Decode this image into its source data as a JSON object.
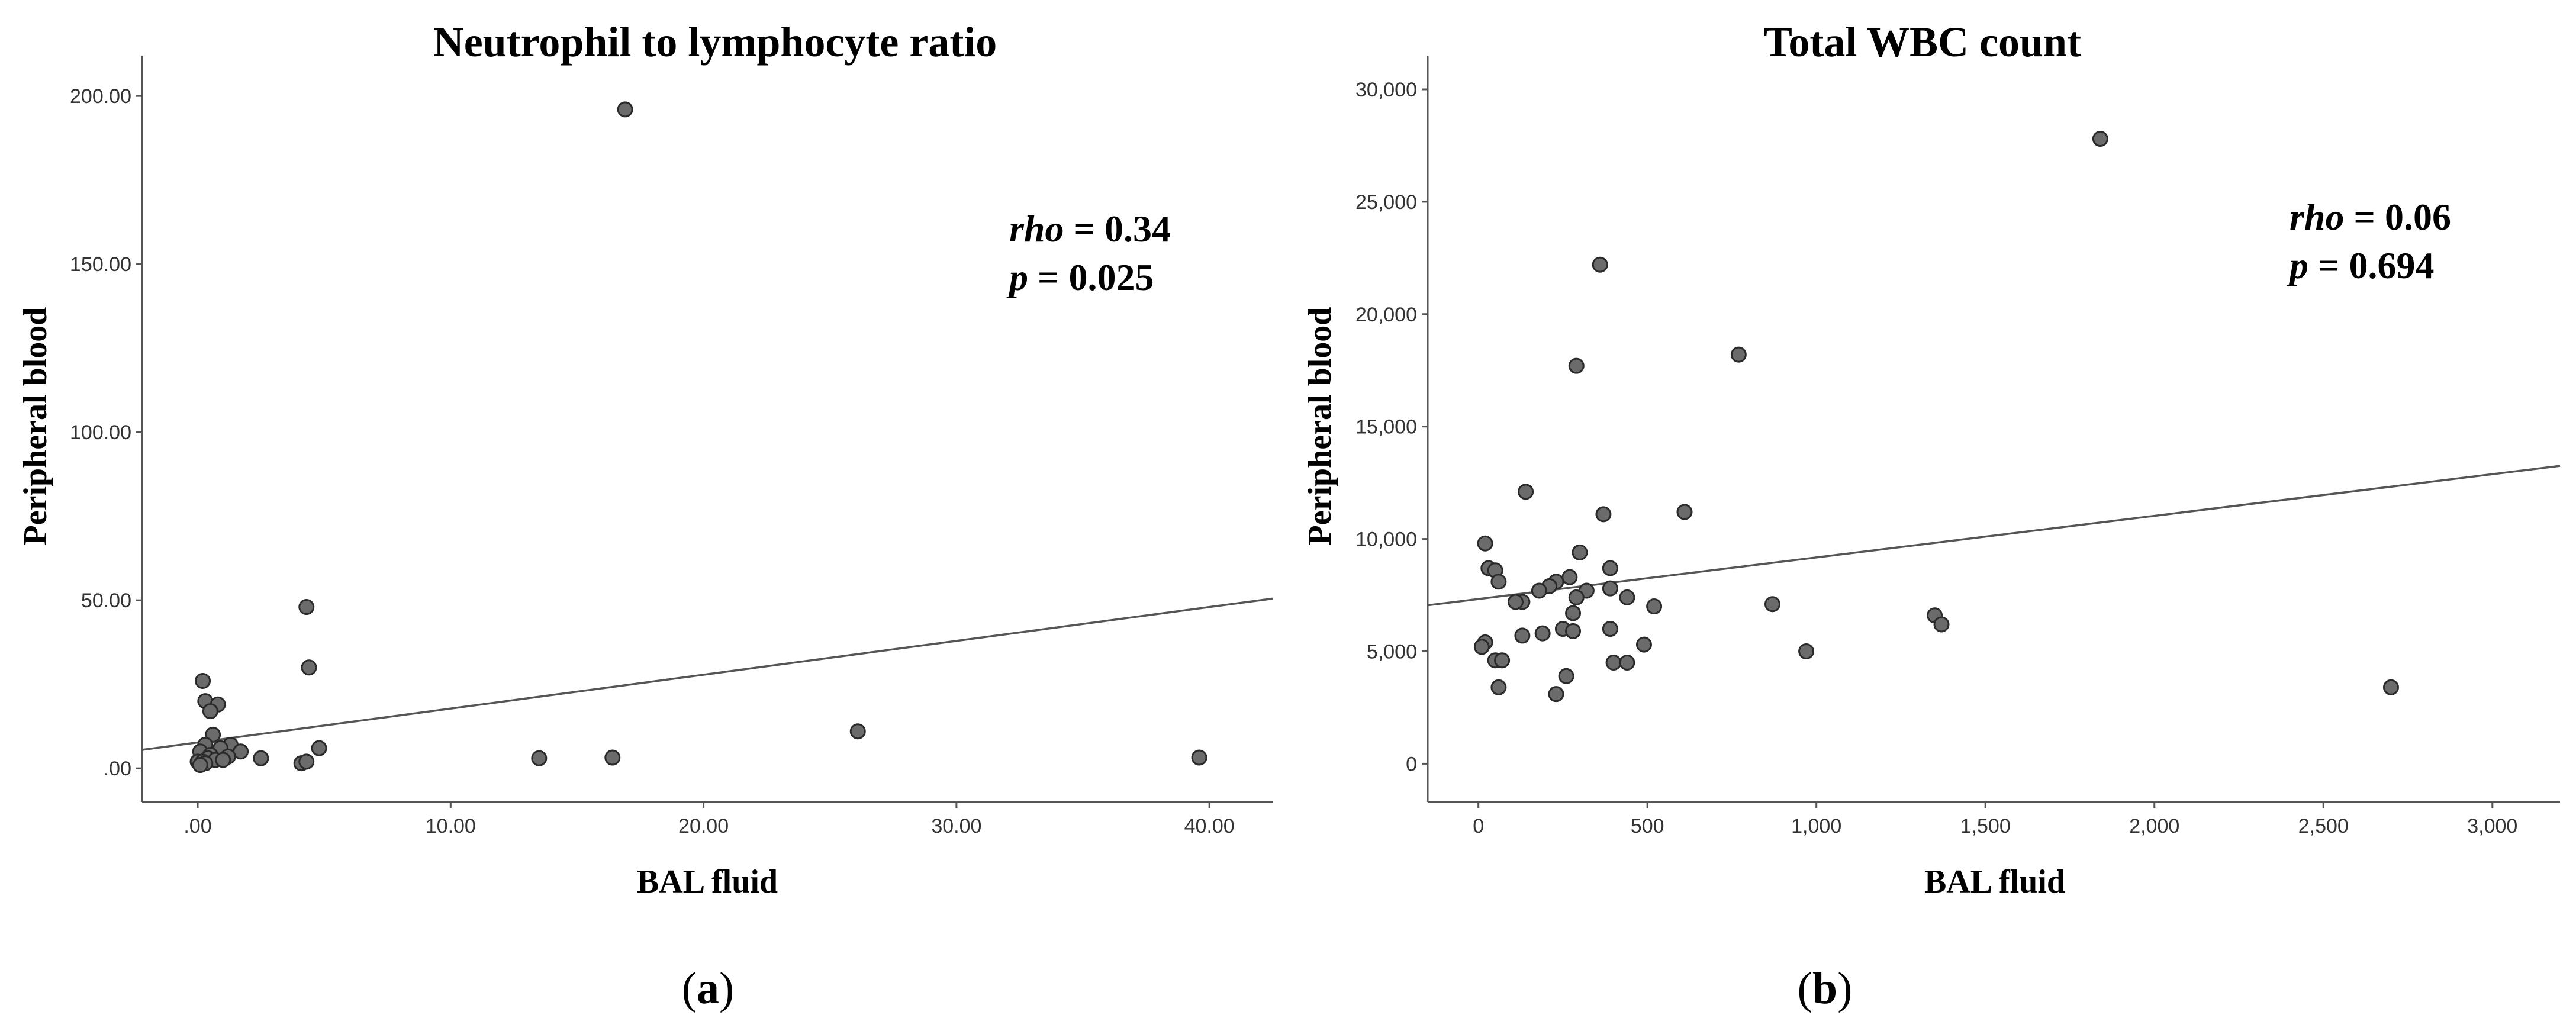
{
  "chart_data": [
    {
      "type": "scatter",
      "title": "Neutrophil to lymphocyte ratio",
      "xlabel": "BAL fluid",
      "ylabel": "Peripheral blood",
      "xlim": [
        -2.2,
        42.5
      ],
      "ylim": [
        -10,
        212
      ],
      "xticks": [
        0,
        10,
        20,
        30,
        40
      ],
      "xtick_labels": [
        ".00",
        "10.00",
        "20.00",
        "30.00",
        "40.00"
      ],
      "yticks": [
        0,
        50,
        100,
        150,
        200
      ],
      "ytick_labels": [
        ".00",
        "50.00",
        "100.00",
        "150.00",
        "200.00"
      ],
      "fit_line": {
        "x": [
          -2.2,
          42.5
        ],
        "y": [
          5.5,
          50.5
        ]
      },
      "annotation": {
        "rho_label": "rho",
        "rho_value": " = 0.34",
        "p_label": "p",
        "p_value": " = 0.025"
      },
      "caption": {
        "open": "(",
        "letter": "a",
        "close": ")"
      },
      "points": [
        [
          16.9,
          196
        ],
        [
          4.3,
          48
        ],
        [
          4.4,
          30
        ],
        [
          0.2,
          26
        ],
        [
          0.3,
          20
        ],
        [
          0.8,
          19
        ],
        [
          0.5,
          17
        ],
        [
          0.6,
          10
        ],
        [
          1.3,
          7
        ],
        [
          0.3,
          7
        ],
        [
          0.9,
          6
        ],
        [
          1.7,
          5
        ],
        [
          0.1,
          5
        ],
        [
          0.5,
          4
        ],
        [
          1.2,
          3.5
        ],
        [
          0.4,
          3
        ],
        [
          0.7,
          2.5
        ],
        [
          0.0,
          2
        ],
        [
          0.2,
          2
        ],
        [
          1.0,
          2.5
        ],
        [
          2.5,
          3
        ],
        [
          0.3,
          1.5
        ],
        [
          0.1,
          1
        ],
        [
          4.1,
          1.5
        ],
        [
          4.3,
          2
        ],
        [
          4.8,
          6
        ],
        [
          13.5,
          3
        ],
        [
          16.4,
          3.2
        ],
        [
          26.1,
          11
        ],
        [
          39.6,
          3.2
        ]
      ]
    },
    {
      "type": "scatter",
      "title": "Total WBC count",
      "xlabel": "BAL fluid",
      "ylabel": "Peripheral blood",
      "xlim": [
        -150,
        3200
      ],
      "ylim": [
        -1700,
        31500
      ],
      "xticks": [
        0,
        500,
        1000,
        1500,
        2000,
        2500,
        3000
      ],
      "xtick_labels": [
        "0",
        "500",
        "1,000",
        "1,500",
        "2,000",
        "2,500",
        "3,000"
      ],
      "yticks": [
        0,
        5000,
        10000,
        15000,
        20000,
        25000,
        30000
      ],
      "ytick_labels": [
        "0",
        "5,000",
        "10,000",
        "15,000",
        "20,000",
        "25,000",
        "30,000"
      ],
      "fit_line": {
        "x": [
          -150,
          3200
        ],
        "y": [
          7050,
          13250
        ]
      },
      "annotation": {
        "rho_label": "rho",
        "rho_value": " = 0.06",
        "p_label": "p",
        "p_value": " = 0.694"
      },
      "caption": {
        "open": "(",
        "letter": "b",
        "close": ")"
      },
      "points": [
        [
          1840,
          27800
        ],
        [
          360,
          22200
        ],
        [
          290,
          17700
        ],
        [
          770,
          18200
        ],
        [
          140,
          12100
        ],
        [
          610,
          11200
        ],
        [
          370,
          11100
        ],
        [
          20,
          9800
        ],
        [
          300,
          9400
        ],
        [
          30,
          8700
        ],
        [
          50,
          8600
        ],
        [
          390,
          8700
        ],
        [
          60,
          8100
        ],
        [
          270,
          8300
        ],
        [
          230,
          8100
        ],
        [
          210,
          7900
        ],
        [
          180,
          7700
        ],
        [
          320,
          7700
        ],
        [
          390,
          7800
        ],
        [
          290,
          7400
        ],
        [
          440,
          7400
        ],
        [
          130,
          7200
        ],
        [
          110,
          7200
        ],
        [
          520,
          7000
        ],
        [
          870,
          7100
        ],
        [
          280,
          6700
        ],
        [
          1350,
          6600
        ],
        [
          1370,
          6200
        ],
        [
          390,
          6000
        ],
        [
          250,
          6000
        ],
        [
          280,
          5900
        ],
        [
          190,
          5800
        ],
        [
          130,
          5700
        ],
        [
          490,
          5300
        ],
        [
          20,
          5400
        ],
        [
          10,
          5200
        ],
        [
          970,
          5000
        ],
        [
          50,
          4600
        ],
        [
          70,
          4600
        ],
        [
          400,
          4500
        ],
        [
          440,
          4500
        ],
        [
          260,
          3900
        ],
        [
          60,
          3400
        ],
        [
          230,
          3100
        ],
        [
          2700,
          3400
        ]
      ]
    }
  ]
}
